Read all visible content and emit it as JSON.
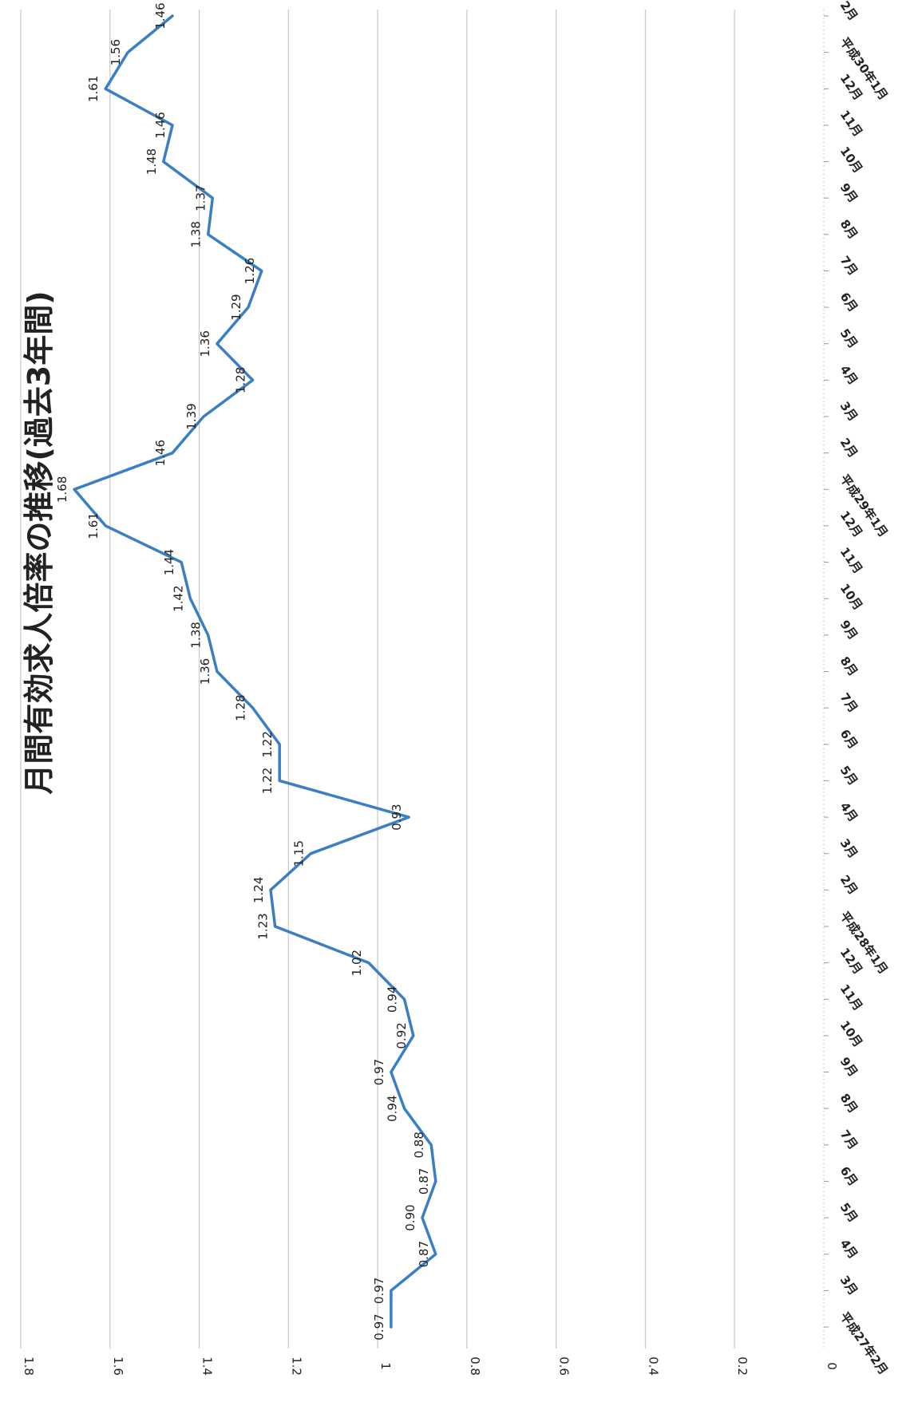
{
  "chart_data": {
    "type": "line",
    "title": "月間有効求人倍率の推移(過去3年間)",
    "xlabel": "",
    "ylabel": "",
    "ylim": [
      0,
      1.8
    ],
    "y_ticks": [
      "0",
      "0.2",
      "0.4",
      "0.6",
      "0.8",
      "1",
      "1.2",
      "1.4",
      "1.6",
      "1.8"
    ],
    "grid": true,
    "legend": "none",
    "orientation": "rotated 90° clockwise",
    "line_color": "#3a7fc4",
    "grid_color": "#c8c8c8",
    "categories": [
      "平成27年2月",
      "3月",
      "4月",
      "5月",
      "6月",
      "7月",
      "8月",
      "9月",
      "10月",
      "11月",
      "12月",
      "平成28年1月",
      "2月",
      "3月",
      "4月",
      "5月",
      "6月",
      "7月",
      "8月",
      "9月",
      "10月",
      "11月",
      "12月",
      "平成29年1月",
      "2月",
      "3月",
      "4月",
      "5月",
      "6月",
      "7月",
      "8月",
      "9月",
      "10月",
      "11月",
      "12月",
      "平成30年1月",
      "2月"
    ],
    "series": [
      {
        "values": [
          0.97,
          0.97,
          0.87,
          0.9,
          0.87,
          0.88,
          0.94,
          0.97,
          0.92,
          0.94,
          1.02,
          1.23,
          1.24,
          1.15,
          0.93,
          1.22,
          1.22,
          1.28,
          1.36,
          1.38,
          1.42,
          1.44,
          1.61,
          1.68,
          1.46,
          1.39,
          1.28,
          1.36,
          1.29,
          1.26,
          1.38,
          1.37,
          1.48,
          1.46,
          1.61,
          1.56,
          1.46
        ],
        "data_labels": [
          "0.97",
          "0.97",
          "0.87",
          "0.90",
          "0.87",
          "0.88",
          "0.94",
          "0.97",
          "0.92",
          "0.94",
          "1.02",
          "1.23",
          "1.24",
          "1.15",
          "0.93",
          "1.22",
          "1.22",
          "1.28",
          "1.36",
          "1.38",
          "1.42",
          "1.44",
          "1.61",
          "1.68",
          "1.46",
          "1.39",
          "1.28",
          "1.36",
          "1.29",
          "1.26",
          "1.38",
          "1.37",
          "1.48",
          "1.46",
          "1.61",
          "1.56",
          "1.46"
        ]
      }
    ]
  }
}
